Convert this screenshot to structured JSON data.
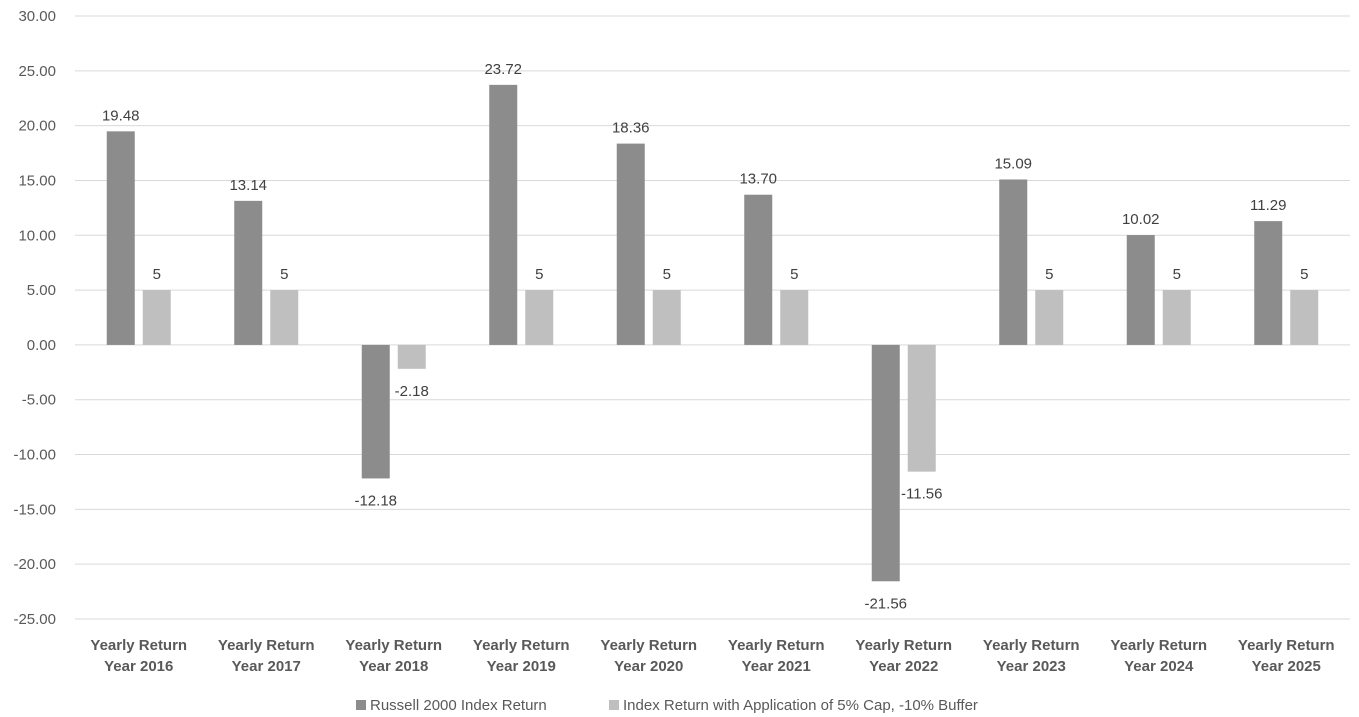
{
  "chart_data": {
    "type": "bar",
    "categories": [
      [
        "Yearly Return",
        "Year 2016"
      ],
      [
        "Yearly Return",
        "Year 2017"
      ],
      [
        "Yearly Return",
        "Year 2018"
      ],
      [
        "Yearly Return",
        "Year 2019"
      ],
      [
        "Yearly Return",
        "Year 2020"
      ],
      [
        "Yearly Return",
        "Year 2021"
      ],
      [
        "Yearly Return",
        "Year 2022"
      ],
      [
        "Yearly Return",
        "Year 2023"
      ],
      [
        "Yearly Return",
        "Year 2024"
      ],
      [
        "Yearly Return",
        "Year 2025"
      ]
    ],
    "series": [
      {
        "name": "Russell 2000 Index Return",
        "color": "#8c8c8c",
        "values": [
          19.48,
          13.14,
          -12.18,
          23.72,
          18.36,
          13.7,
          -21.56,
          15.09,
          10.02,
          11.29
        ],
        "labels": [
          "19.48",
          "13.14",
          "-12.18",
          "23.72",
          "18.36",
          "13.70",
          "-21.56",
          "15.09",
          "10.02",
          "11.29"
        ]
      },
      {
        "name": "Index Return with Application of 5% Cap, -10% Buffer",
        "color": "#bfbfbf",
        "values": [
          5,
          5,
          -2.18,
          5,
          5,
          5,
          -11.56,
          5,
          5,
          5
        ],
        "labels": [
          "5",
          "5",
          "-2.18",
          "5",
          "5",
          "5",
          "-11.56",
          "5",
          "5",
          "5"
        ]
      }
    ],
    "ylim": [
      -25,
      30
    ],
    "yticks": [
      "30.00",
      "25.00",
      "20.00",
      "15.00",
      "10.00",
      "5.00",
      "0.00",
      "-5.00",
      "-10.00",
      "-15.00",
      "-20.00",
      "-25.00"
    ],
    "ytick_values": [
      30,
      25,
      20,
      15,
      10,
      5,
      0,
      -5,
      -10,
      -15,
      -20,
      -25
    ],
    "grid": true,
    "legend_position": "bottom"
  }
}
